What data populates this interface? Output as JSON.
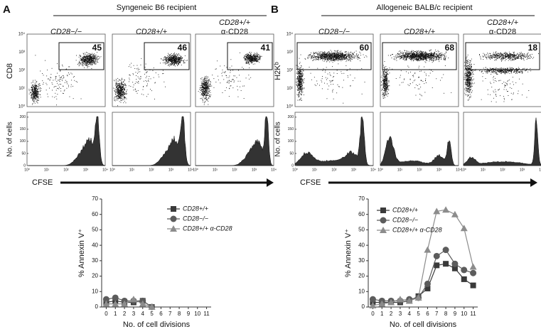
{
  "panels": [
    {
      "letter": "A",
      "title": "Syngeneic B6 recipient",
      "columns": [
        [
          "CD28−/−"
        ],
        [
          "CD28+/+"
        ],
        [
          "CD28+/+",
          "α-CD28"
        ]
      ],
      "gates": [
        45,
        46,
        41
      ],
      "y_label": "CD8",
      "hist_y_label": "No. of cells",
      "x_label": "CFSE"
    },
    {
      "letter": "B",
      "title": "Allogeneic BALB/c recipient",
      "columns": [
        [
          "CD28−/−"
        ],
        [
          "CD28+/+"
        ],
        [
          "CD28+/+",
          "α-CD28"
        ]
      ],
      "gates": [
        60,
        68,
        18
      ],
      "y_label": "H2Kᵇ",
      "hist_y_label": "No. of cells",
      "x_label": "CFSE"
    }
  ],
  "flow_ticks": [
    "10⁰",
    "10¹",
    "10²",
    "10³",
    "10⁴"
  ],
  "hist_yticks": [
    0,
    50,
    100,
    150,
    200
  ],
  "chart_data": [
    {
      "type": "line",
      "y_label": "% Annexin V⁺",
      "x_label": "No. of cell divisions",
      "x": [
        0,
        1,
        2,
        3,
        4,
        5,
        6,
        7,
        8,
        9,
        10,
        11
      ],
      "xlim": [
        -0.5,
        11.5
      ],
      "xticks": [
        0,
        1,
        2,
        3,
        4,
        5,
        6,
        7,
        8,
        9,
        10,
        11
      ],
      "ylim": [
        0,
        70
      ],
      "yticks": [
        0,
        10,
        20,
        30,
        40,
        50,
        60,
        70
      ],
      "legend": "upper right",
      "series": [
        {
          "name": "CD28+/+",
          "color": "#3a3a3a",
          "marker": "square",
          "values": [
            3,
            4,
            3,
            3,
            4,
            0,
            null,
            null,
            null,
            null,
            null,
            null
          ]
        },
        {
          "name": "CD28−/−",
          "color": "#5c5c5c",
          "marker": "circle",
          "values": [
            5,
            6,
            4,
            4,
            4,
            0,
            null,
            null,
            null,
            null,
            null,
            null
          ]
        },
        {
          "name": "CD28+/+ α-CD28",
          "color": "#8c8c8c",
          "marker": "triangle",
          "values": [
            2,
            2,
            2,
            5,
            2,
            0,
            null,
            null,
            null,
            null,
            null,
            null
          ]
        }
      ]
    },
    {
      "type": "line",
      "y_label": "% Annexin V⁺",
      "x_label": "No. of cell divisions",
      "x": [
        0,
        1,
        2,
        3,
        4,
        5,
        6,
        7,
        8,
        9,
        10,
        11
      ],
      "xlim": [
        -0.5,
        11.5
      ],
      "xticks": [
        0,
        1,
        2,
        3,
        4,
        5,
        6,
        7,
        8,
        9,
        10,
        11
      ],
      "ylim": [
        0,
        70
      ],
      "yticks": [
        0,
        10,
        20,
        30,
        40,
        50,
        60,
        70
      ],
      "legend": "upper left",
      "series": [
        {
          "name": "CD28+/+",
          "color": "#3a3a3a",
          "marker": "square",
          "values": [
            3,
            3,
            3,
            3,
            4,
            7,
            12,
            27,
            28,
            25,
            18,
            14
          ]
        },
        {
          "name": "CD28−/−",
          "color": "#5c5c5c",
          "marker": "circle",
          "values": [
            5,
            4,
            4,
            4,
            5,
            6,
            15,
            33,
            37,
            28,
            24,
            22
          ]
        },
        {
          "name": "CD28+/+ α-CD28",
          "color": "#8c8c8c",
          "marker": "triangle",
          "values": [
            1,
            2,
            3,
            5,
            4,
            6,
            37,
            62,
            63,
            60,
            51,
            26
          ]
        }
      ]
    }
  ]
}
